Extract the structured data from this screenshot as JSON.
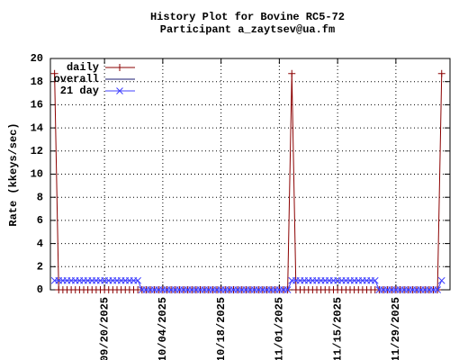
{
  "chart_data": {
    "type": "line",
    "title": "History Plot for Bovine RC5-72",
    "subtitle": "Participant a_zaytsev@ua.fm",
    "y_label": "Rate (kkeys/sec)",
    "x": [
      "2025-09-08",
      "2025-09-09",
      "2025-09-10",
      "2025-09-11",
      "2025-09-12",
      "2025-09-13",
      "2025-09-14",
      "2025-09-15",
      "2025-09-16",
      "2025-09-17",
      "2025-09-18",
      "2025-09-19",
      "2025-09-20",
      "2025-09-21",
      "2025-09-22",
      "2025-09-23",
      "2025-09-24",
      "2025-09-25",
      "2025-09-26",
      "2025-09-27",
      "2025-09-28",
      "2025-09-29",
      "2025-09-30",
      "2025-10-01",
      "2025-10-02",
      "2025-10-03",
      "2025-10-04",
      "2025-10-05",
      "2025-10-06",
      "2025-10-07",
      "2025-10-08",
      "2025-10-09",
      "2025-10-10",
      "2025-10-11",
      "2025-10-12",
      "2025-10-13",
      "2025-10-14",
      "2025-10-15",
      "2025-10-16",
      "2025-10-17",
      "2025-10-18",
      "2025-10-19",
      "2025-10-20",
      "2025-10-21",
      "2025-10-22",
      "2025-10-23",
      "2025-10-24",
      "2025-10-25",
      "2025-10-26",
      "2025-10-27",
      "2025-10-28",
      "2025-10-29",
      "2025-10-30",
      "2025-10-31",
      "2025-11-01",
      "2025-11-02",
      "2025-11-03",
      "2025-11-04",
      "2025-11-05",
      "2025-11-06",
      "2025-11-07",
      "2025-11-08",
      "2025-11-09",
      "2025-11-10",
      "2025-11-11",
      "2025-11-12",
      "2025-11-13",
      "2025-11-14",
      "2025-11-15",
      "2025-11-16",
      "2025-11-17",
      "2025-11-18",
      "2025-11-19",
      "2025-11-20",
      "2025-11-21",
      "2025-11-22",
      "2025-11-23",
      "2025-11-24",
      "2025-11-25",
      "2025-11-26",
      "2025-11-27",
      "2025-11-28",
      "2025-11-29",
      "2025-11-30",
      "2025-12-01",
      "2025-12-02",
      "2025-12-03",
      "2025-12-04",
      "2025-12-05",
      "2025-12-06",
      "2025-12-07",
      "2025-12-08",
      "2025-12-09",
      "2025-12-10"
    ],
    "series": [
      {
        "name": "daily",
        "color": "#8b0000",
        "marker": "plus",
        "values": [
          18.7,
          0,
          0,
          0,
          0,
          0,
          0,
          0,
          0,
          0,
          0,
          0,
          0,
          0,
          0,
          0,
          0,
          0,
          0,
          0,
          0,
          0,
          0,
          0,
          0,
          0,
          0,
          0,
          0,
          0,
          0,
          0,
          0,
          0,
          0,
          0,
          0,
          0,
          0,
          0,
          0,
          0,
          0,
          0,
          0,
          0,
          0,
          0,
          0,
          0,
          0,
          0,
          0,
          0,
          0,
          0,
          0,
          18.7,
          0,
          0,
          0,
          0,
          0,
          0,
          0,
          0,
          0,
          0,
          0,
          0,
          0,
          0,
          0,
          0,
          0,
          0,
          0,
          0,
          0,
          0,
          0,
          0,
          0,
          0,
          0,
          0,
          0,
          0,
          0,
          0,
          0,
          0,
          0,
          18.7
        ]
      },
      {
        "name": "overall",
        "color": "#191970",
        "marker": "none",
        "values": [
          null,
          null,
          null,
          null,
          null,
          null,
          null,
          null,
          null,
          null,
          null,
          null,
          null,
          null,
          null,
          null,
          null,
          null,
          null,
          null,
          null,
          null,
          null,
          null,
          null,
          null,
          null,
          null,
          null,
          null,
          null,
          null,
          null,
          null,
          null,
          null,
          null,
          null,
          null,
          null,
          null,
          null,
          null,
          null,
          null,
          null,
          null,
          null,
          null,
          null,
          null,
          null,
          null,
          null,
          null,
          null,
          null,
          null,
          null,
          null,
          null,
          null,
          null,
          null,
          null,
          null,
          null,
          null,
          null,
          null,
          null,
          null,
          null,
          null,
          null,
          null,
          null,
          null,
          null,
          null,
          null,
          null,
          null,
          null,
          null,
          null,
          null,
          null,
          null,
          null,
          null,
          null,
          null,
          null
        ]
      },
      {
        "name": "21 day",
        "color": "#4040ff",
        "marker": "cross",
        "values": [
          0.8,
          0.8,
          0.8,
          0.8,
          0.8,
          0.8,
          0.8,
          0.8,
          0.8,
          0.8,
          0.8,
          0.8,
          0.8,
          0.8,
          0.8,
          0.8,
          0.8,
          0.8,
          0.8,
          0.8,
          0.8,
          0,
          0,
          0,
          0,
          0,
          0,
          0,
          0,
          0,
          0,
          0,
          0,
          0,
          0,
          0,
          0,
          0,
          0,
          0,
          0,
          0,
          0,
          0,
          0,
          0,
          0,
          0,
          0,
          0,
          0,
          0,
          0,
          0,
          0,
          0,
          0,
          0.8,
          0.8,
          0.8,
          0.8,
          0.8,
          0.8,
          0.8,
          0.8,
          0.8,
          0.8,
          0.8,
          0.8,
          0.8,
          0.8,
          0.8,
          0.8,
          0.8,
          0.8,
          0.8,
          0.8,
          0.8,
          0,
          0,
          0,
          0,
          0,
          0,
          0,
          0,
          0,
          0,
          0,
          0,
          0,
          0,
          0,
          0.8
        ]
      }
    ],
    "xlim": [
      "2025-09-07",
      "2025-12-12"
    ],
    "xticks": [
      {
        "value": "2025-09-20",
        "label": "09/20/2025"
      },
      {
        "value": "2025-10-04",
        "label": "10/04/2025"
      },
      {
        "value": "2025-10-18",
        "label": "10/18/2025"
      },
      {
        "value": "2025-11-01",
        "label": "11/01/2025"
      },
      {
        "value": "2025-11-15",
        "label": "11/15/2025"
      },
      {
        "value": "2025-11-29",
        "label": "11/29/2025"
      }
    ],
    "ylim": [
      0,
      20
    ],
    "yticks": [
      0,
      2,
      4,
      6,
      8,
      10,
      12,
      14,
      16,
      18,
      20
    ],
    "grid": true,
    "legend": "top-left"
  }
}
